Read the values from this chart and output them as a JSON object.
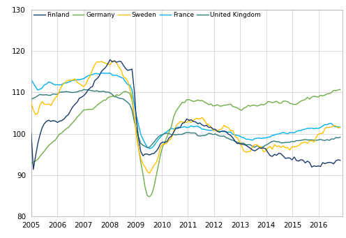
{
  "title": "",
  "xlim": [
    2005.0,
    2016.92
  ],
  "ylim": [
    80,
    130
  ],
  "yticks": [
    80,
    90,
    100,
    110,
    120,
    130
  ],
  "xtick_years": [
    2005,
    2006,
    2007,
    2008,
    2009,
    2010,
    2011,
    2012,
    2013,
    2014,
    2015,
    2016
  ],
  "colors": {
    "Finland": "#1a3a6b",
    "Germany": "#70ad47",
    "Sweden": "#ffc000",
    "France": "#00b0f0",
    "United Kingdom": "#2e7b7b"
  },
  "linewidth": 1.0,
  "grid_color": "#cccccc",
  "background_color": "#ffffff"
}
